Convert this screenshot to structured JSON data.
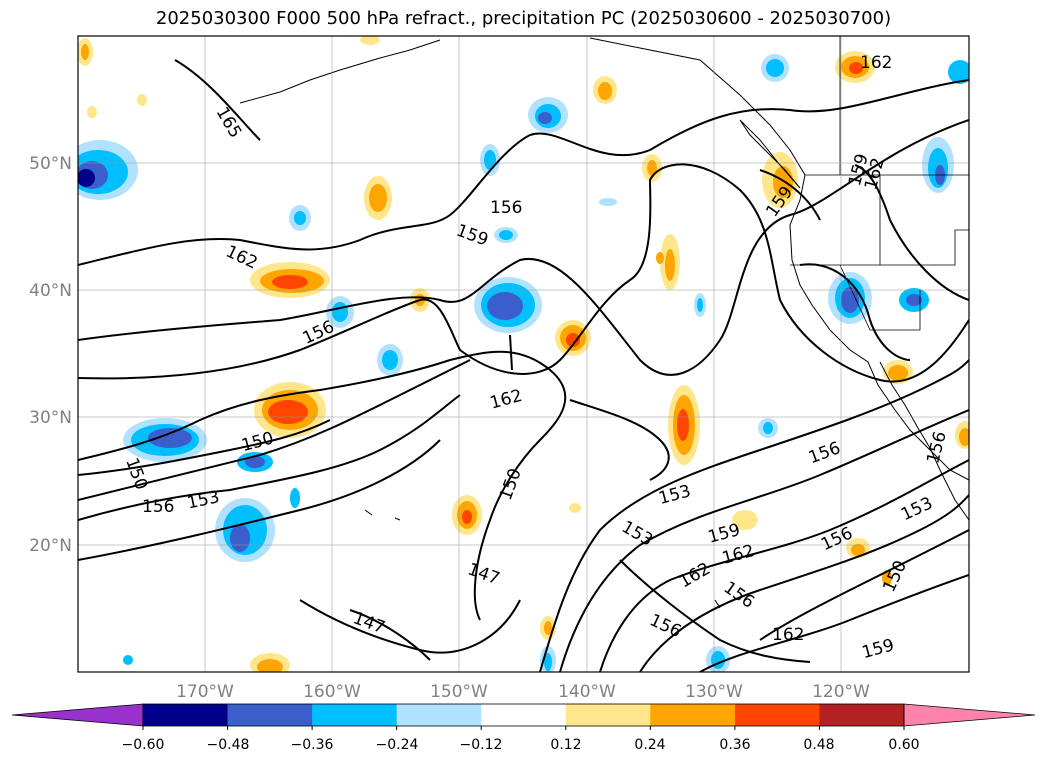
{
  "title": "2025030300 F000 500 hPa refract., precipitation PC (2025030600 - 2025030700)",
  "lon_labels": [
    "170°W",
    "160°W",
    "150°W",
    "140°W",
    "130°W",
    "120°W"
  ],
  "lat_labels": [
    "50°N",
    "40°N",
    "30°N",
    "20°N"
  ],
  "colorbar": {
    "tick_labels": [
      "−0.60",
      "−0.48",
      "−0.36",
      "−0.24",
      "−0.12",
      "0.12",
      "0.24",
      "0.36",
      "0.48",
      "0.60"
    ],
    "colors": [
      "#9932cc",
      "#00008b",
      "#3a5fcd",
      "#00bfff",
      "#b0e2ff",
      "#ffffff",
      "#ffe68a",
      "#ffa500",
      "#ff4500",
      "#b22222",
      "#ff82ab"
    ]
  },
  "contour_labels": [
    "165",
    "162",
    "156",
    "159",
    "162",
    "156",
    "162",
    "150",
    "150",
    "156",
    "153",
    "150",
    "147",
    "147",
    "153",
    "153",
    "159",
    "162",
    "162",
    "156",
    "156",
    "156",
    "162",
    "156",
    "150",
    "153",
    "156",
    "159",
    "162",
    "159",
    "159"
  ]
}
